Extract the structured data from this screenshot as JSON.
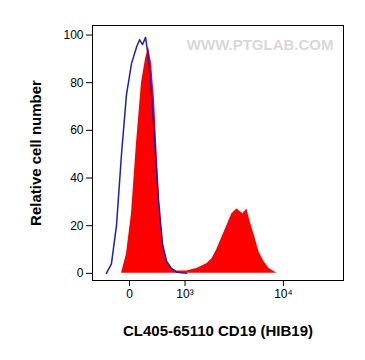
{
  "chart_data": {
    "type": "histogram",
    "x_label": "CL405-65110 CD19 (HIB19)",
    "y_label": "Relative cell number",
    "annotation": "WWW.PTGLAB.COM",
    "log": "x",
    "xlim": [
      -540,
      34000
    ],
    "xticks": [
      0,
      {
        "value": 1000,
        "label": "10³"
      },
      {
        "value": 10000,
        "label": "10⁴"
      }
    ],
    "ylim": [
      -3,
      104
    ],
    "yticks": [
      0,
      20,
      40,
      60,
      80,
      100
    ],
    "grid": false,
    "series": [
      {
        "type": "area",
        "color": "#ff0000",
        "x": [
          -86,
          -31,
          20,
          75,
          134,
          187,
          229,
          274,
          322,
          355,
          407,
          463,
          543,
          651,
          771,
          1051,
          1393,
          1807,
          2049,
          2315,
          2608,
          2931,
          3290,
          3686,
          3945,
          4216,
          4608,
          4918,
          5488,
          5981,
          6656,
          7407,
          8761
        ],
        "values": [
          0,
          8,
          25,
          55,
          80,
          90,
          95,
          88,
          72,
          55,
          30,
          14,
          5,
          2,
          1,
          1,
          2,
          4,
          6,
          10,
          15,
          20,
          25,
          27,
          26,
          25,
          27,
          22,
          15,
          9,
          5,
          2,
          0
        ]
      },
      {
        "type": "line",
        "color": "#1f1fb0",
        "x": [
          -290,
          -215,
          -147,
          -86,
          -31,
          20,
          75,
          110,
          147,
          187,
          229,
          274,
          322,
          390,
          463,
          543,
          651,
          771,
          1051
        ],
        "values": [
          0,
          4,
          20,
          50,
          75,
          88,
          95,
          98,
          96,
          99,
          90,
          75,
          55,
          30,
          12,
          5,
          2,
          0.5,
          0
        ]
      }
    ]
  }
}
